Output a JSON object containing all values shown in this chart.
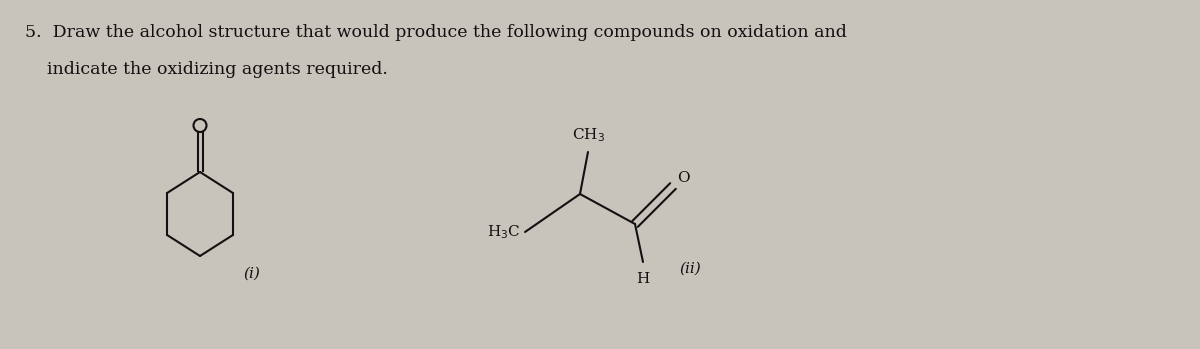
{
  "bg_color": "#c8c4bc",
  "text_color": "#111111",
  "title_line1": "5.  Draw the alcohol structure that would produce the following compounds on oxidation and",
  "title_line2": "    indicate the oxidizing agents required.",
  "label_i": "(i)",
  "label_ii": "(ii)",
  "font_size_title": 12.5,
  "font_size_label": 11,
  "font_size_chem": 11
}
